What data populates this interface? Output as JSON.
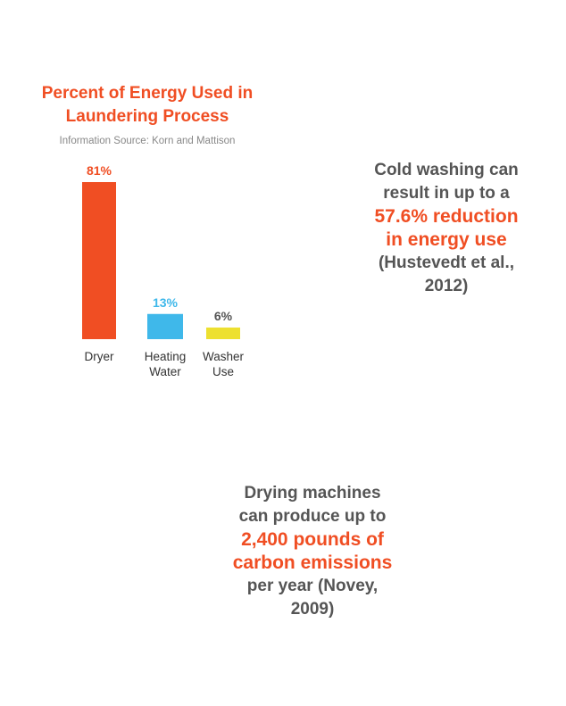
{
  "chart_data": {
    "type": "bar",
    "title_lines": [
      "Percent of Energy Used in",
      "Laundering Process"
    ],
    "subtitle": "Information Source: Korn and Mattison",
    "categories": [
      [
        "Dryer"
      ],
      [
        "Heating",
        "Water"
      ],
      [
        "Washer",
        "Use"
      ]
    ],
    "values": [
      81,
      13,
      6
    ],
    "value_labels": [
      "81%",
      "13%",
      "6%"
    ],
    "colors": [
      "#f04e23",
      "#3fb8ea",
      "#ede030"
    ],
    "label_colors": [
      "#f04e23",
      "#3fb8ea",
      "#555555"
    ],
    "ylim": [
      0,
      81
    ],
    "grid": false,
    "legend": "none"
  },
  "facts": [
    {
      "lines": [
        "Cold washing can",
        "result in up to a"
      ],
      "highlight_lines": [
        "57.6% reduction",
        "in energy use"
      ],
      "tail_lines": [
        "(Hustevedt et al.,",
        "2012)"
      ]
    },
    {
      "lines": [
        "Drying machines",
        "can produce up to"
      ],
      "highlight_lines": [
        "2,400 pounds of",
        "carbon emissions"
      ],
      "tail_lines": [
        "per year (Novey,",
        "2009)"
      ]
    }
  ]
}
